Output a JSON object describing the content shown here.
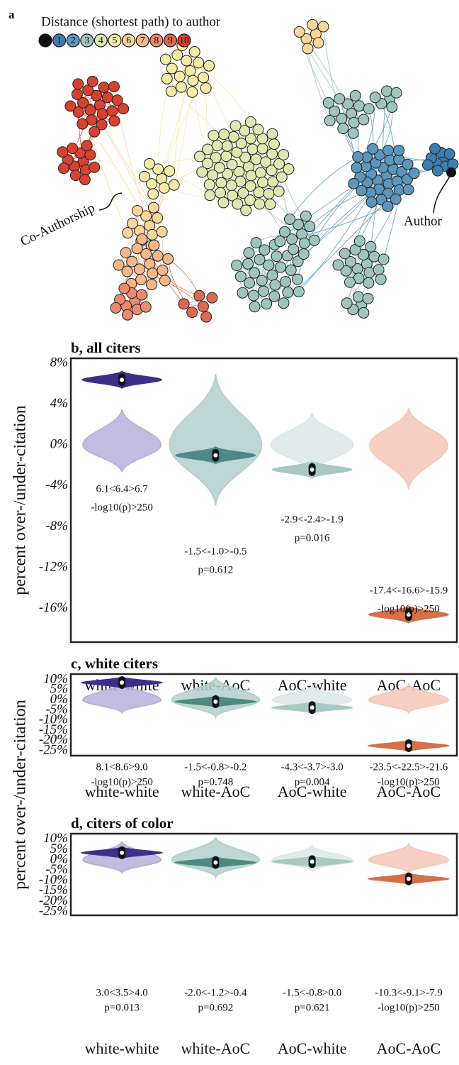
{
  "network": {
    "panel_label": "a",
    "legend_title": "Distance (shortest path) to author",
    "legend": {
      "labels": [
        0,
        1,
        2,
        3,
        4,
        5,
        6,
        7,
        8,
        9,
        10
      ],
      "colors": [
        "#111111",
        "#3a7fb0",
        "#5b97bd",
        "#9ec5bd",
        "#dfe8b0",
        "#f4eba6",
        "#f8d59a",
        "#f4b88a",
        "#ec8a6d",
        "#e06850",
        "#d8402f"
      ]
    },
    "author_label": "Author",
    "edge_label": "Co-Authorship"
  },
  "chart_data": [
    {
      "type": "violin",
      "title": "b, all citers",
      "ylabel": "percent over-/under-citation",
      "categories": [
        "white-white",
        "white-AoC",
        "AoC-white",
        "AoC-AoC"
      ],
      "values": [
        6.4,
        -1.0,
        -2.4,
        -16.6
      ],
      "null_values": [
        0,
        0,
        0,
        0
      ],
      "colors": [
        "#3f2f8a",
        "#4b8a85",
        "#a8c8c4",
        "#d4704a"
      ],
      "null_colors": [
        "#b8b0dc",
        "#b4d0cc",
        "#dbe9e7",
        "#f6c8b8"
      ],
      "annotations": [
        [
          "6.1<6.4>6.7",
          "-log10(p)>250"
        ],
        [
          "-1.5<-1.0>-0.5",
          "p=0.612"
        ],
        [
          "-2.9<-2.4>-1.9",
          "p=0.016"
        ],
        [
          "-17.4<-16.6>-15.9",
          "-log10(p)>250"
        ]
      ],
      "ylim": [
        -19.3,
        8.5
      ],
      "yticks": [
        {
          "value": 8,
          "label": "8%"
        },
        {
          "value": 4,
          "label": "4%"
        },
        {
          "value": 0,
          "label": "0%"
        },
        {
          "value": -4,
          "label": "-4%"
        },
        {
          "value": -8,
          "label": "-8%"
        },
        {
          "value": -12,
          "label": "-12%"
        },
        {
          "value": -16,
          "label": "-16%"
        }
      ]
    },
    {
      "type": "violin",
      "title": "c, white citers",
      "ylabel": "percent over-/under-citation",
      "categories": [
        "white-white",
        "white-AoC",
        "AoC-white",
        "AoC-AoC"
      ],
      "values": [
        8.6,
        -0.8,
        -3.7,
        -22.5
      ],
      "null_values": [
        0,
        0,
        0,
        0
      ],
      "colors": [
        "#3f2f8a",
        "#4b8a85",
        "#a8c8c4",
        "#d4704a"
      ],
      "null_colors": [
        "#b8b0dc",
        "#b4d0cc",
        "#dbe9e7",
        "#f6c8b8"
      ],
      "annotations": [
        [
          "8.1<8.6>9.0",
          "-log10(p)>250"
        ],
        [
          "-1.5<-0.8>-0.2",
          "p=0.748"
        ],
        [
          "-4.3<-3.7>-3.0",
          "p=0.004"
        ],
        [
          "-23.5<-22.5>-21.6",
          "-log10(p)>250"
        ]
      ],
      "ylim": [
        -27.4,
        12.8
      ],
      "yticks": [
        {
          "value": 10,
          "label": "10%"
        },
        {
          "value": 5,
          "label": "5%"
        },
        {
          "value": 0,
          "label": "0%"
        },
        {
          "value": -5,
          "label": "-5%"
        },
        {
          "value": -10,
          "label": "-10%"
        },
        {
          "value": -15,
          "label": "-15%"
        },
        {
          "value": -20,
          "label": "-20%"
        },
        {
          "value": -25,
          "label": "-25%"
        }
      ]
    },
    {
      "type": "violin",
      "title": "d, citers of color",
      "categories": [
        "white-white",
        "white-AoC",
        "AoC-white",
        "AoC-AoC"
      ],
      "values": [
        3.5,
        -1.2,
        -0.8,
        -9.1
      ],
      "null_values": [
        0,
        0,
        0,
        0
      ],
      "colors": [
        "#3f2f8a",
        "#4b8a85",
        "#a8c8c4",
        "#d4704a"
      ],
      "null_colors": [
        "#b8b0dc",
        "#b4d0cc",
        "#dbe9e7",
        "#f6c8b8"
      ],
      "annotations": [
        [
          "3.0<3.5>4.0",
          "p=0.013"
        ],
        [
          "-2.0<-1.2>-0.4",
          "p=0.692"
        ],
        [
          "-1.5<-0.8>0.0",
          "p=0.621"
        ],
        [
          "-10.3<-9.1>-7.9",
          "-log10(p)>250"
        ]
      ],
      "ylim": [
        -26.7,
        12.7
      ],
      "yticks": [
        {
          "value": 10,
          "label": "10%"
        },
        {
          "value": 5,
          "label": "5%"
        },
        {
          "value": 0,
          "label": "0%"
        },
        {
          "value": -5,
          "label": "-5%"
        },
        {
          "value": -10,
          "label": "-10%"
        },
        {
          "value": -15,
          "label": "-15%"
        },
        {
          "value": -20,
          "label": "-20%"
        },
        {
          "value": -25,
          "label": "-25%"
        }
      ]
    }
  ]
}
